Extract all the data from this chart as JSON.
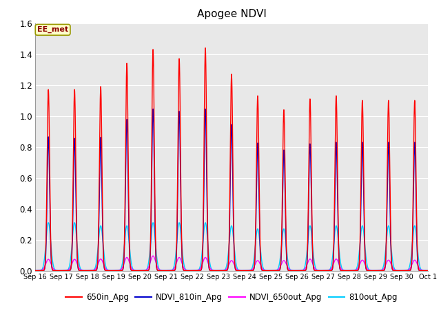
{
  "title": "Apogee NDVI",
  "annotation": "EE_met",
  "ylim": [
    0.0,
    1.6
  ],
  "yticks": [
    0.0,
    0.2,
    0.4,
    0.6,
    0.8,
    1.0,
    1.2,
    1.4,
    1.6
  ],
  "background_color": "#e8e8e8",
  "colors": {
    "650in_Apg": "#ff0000",
    "NDVI_810in_Apg": "#0000cc",
    "NDVI_650out_Apg": "#ff00ff",
    "810out_Apg": "#00ccff"
  },
  "x_tick_labels": [
    "Sep 16",
    "Sep 17",
    "Sep 18",
    "Sep 19",
    "Sep 20",
    "Sep 21",
    "Sep 22",
    "Sep 23",
    "Sep 24",
    "Sep 25",
    "Sep 26",
    "Sep 27",
    "Sep 28",
    "Sep 29",
    "Sep 30",
    "Oct 1"
  ],
  "num_days": 15,
  "peaks_650in": [
    1.17,
    1.17,
    1.19,
    1.34,
    1.43,
    1.37,
    1.44,
    1.27,
    1.13,
    1.04,
    1.11,
    1.13,
    1.1,
    1.1,
    1.1
  ],
  "peaks_810in": [
    0.865,
    0.855,
    0.862,
    0.978,
    1.045,
    1.03,
    1.045,
    0.945,
    0.825,
    0.78,
    0.82,
    0.83,
    0.83,
    0.83,
    0.83
  ],
  "peaks_650out": [
    0.073,
    0.073,
    0.075,
    0.085,
    0.095,
    0.085,
    0.085,
    0.065,
    0.065,
    0.065,
    0.075,
    0.075,
    0.068,
    0.068,
    0.068
  ],
  "peaks_810out": [
    0.31,
    0.31,
    0.29,
    0.29,
    0.31,
    0.31,
    0.31,
    0.29,
    0.27,
    0.27,
    0.29,
    0.29,
    0.29,
    0.29,
    0.29
  ],
  "figsize": [
    6.4,
    4.8
  ],
  "dpi": 100
}
